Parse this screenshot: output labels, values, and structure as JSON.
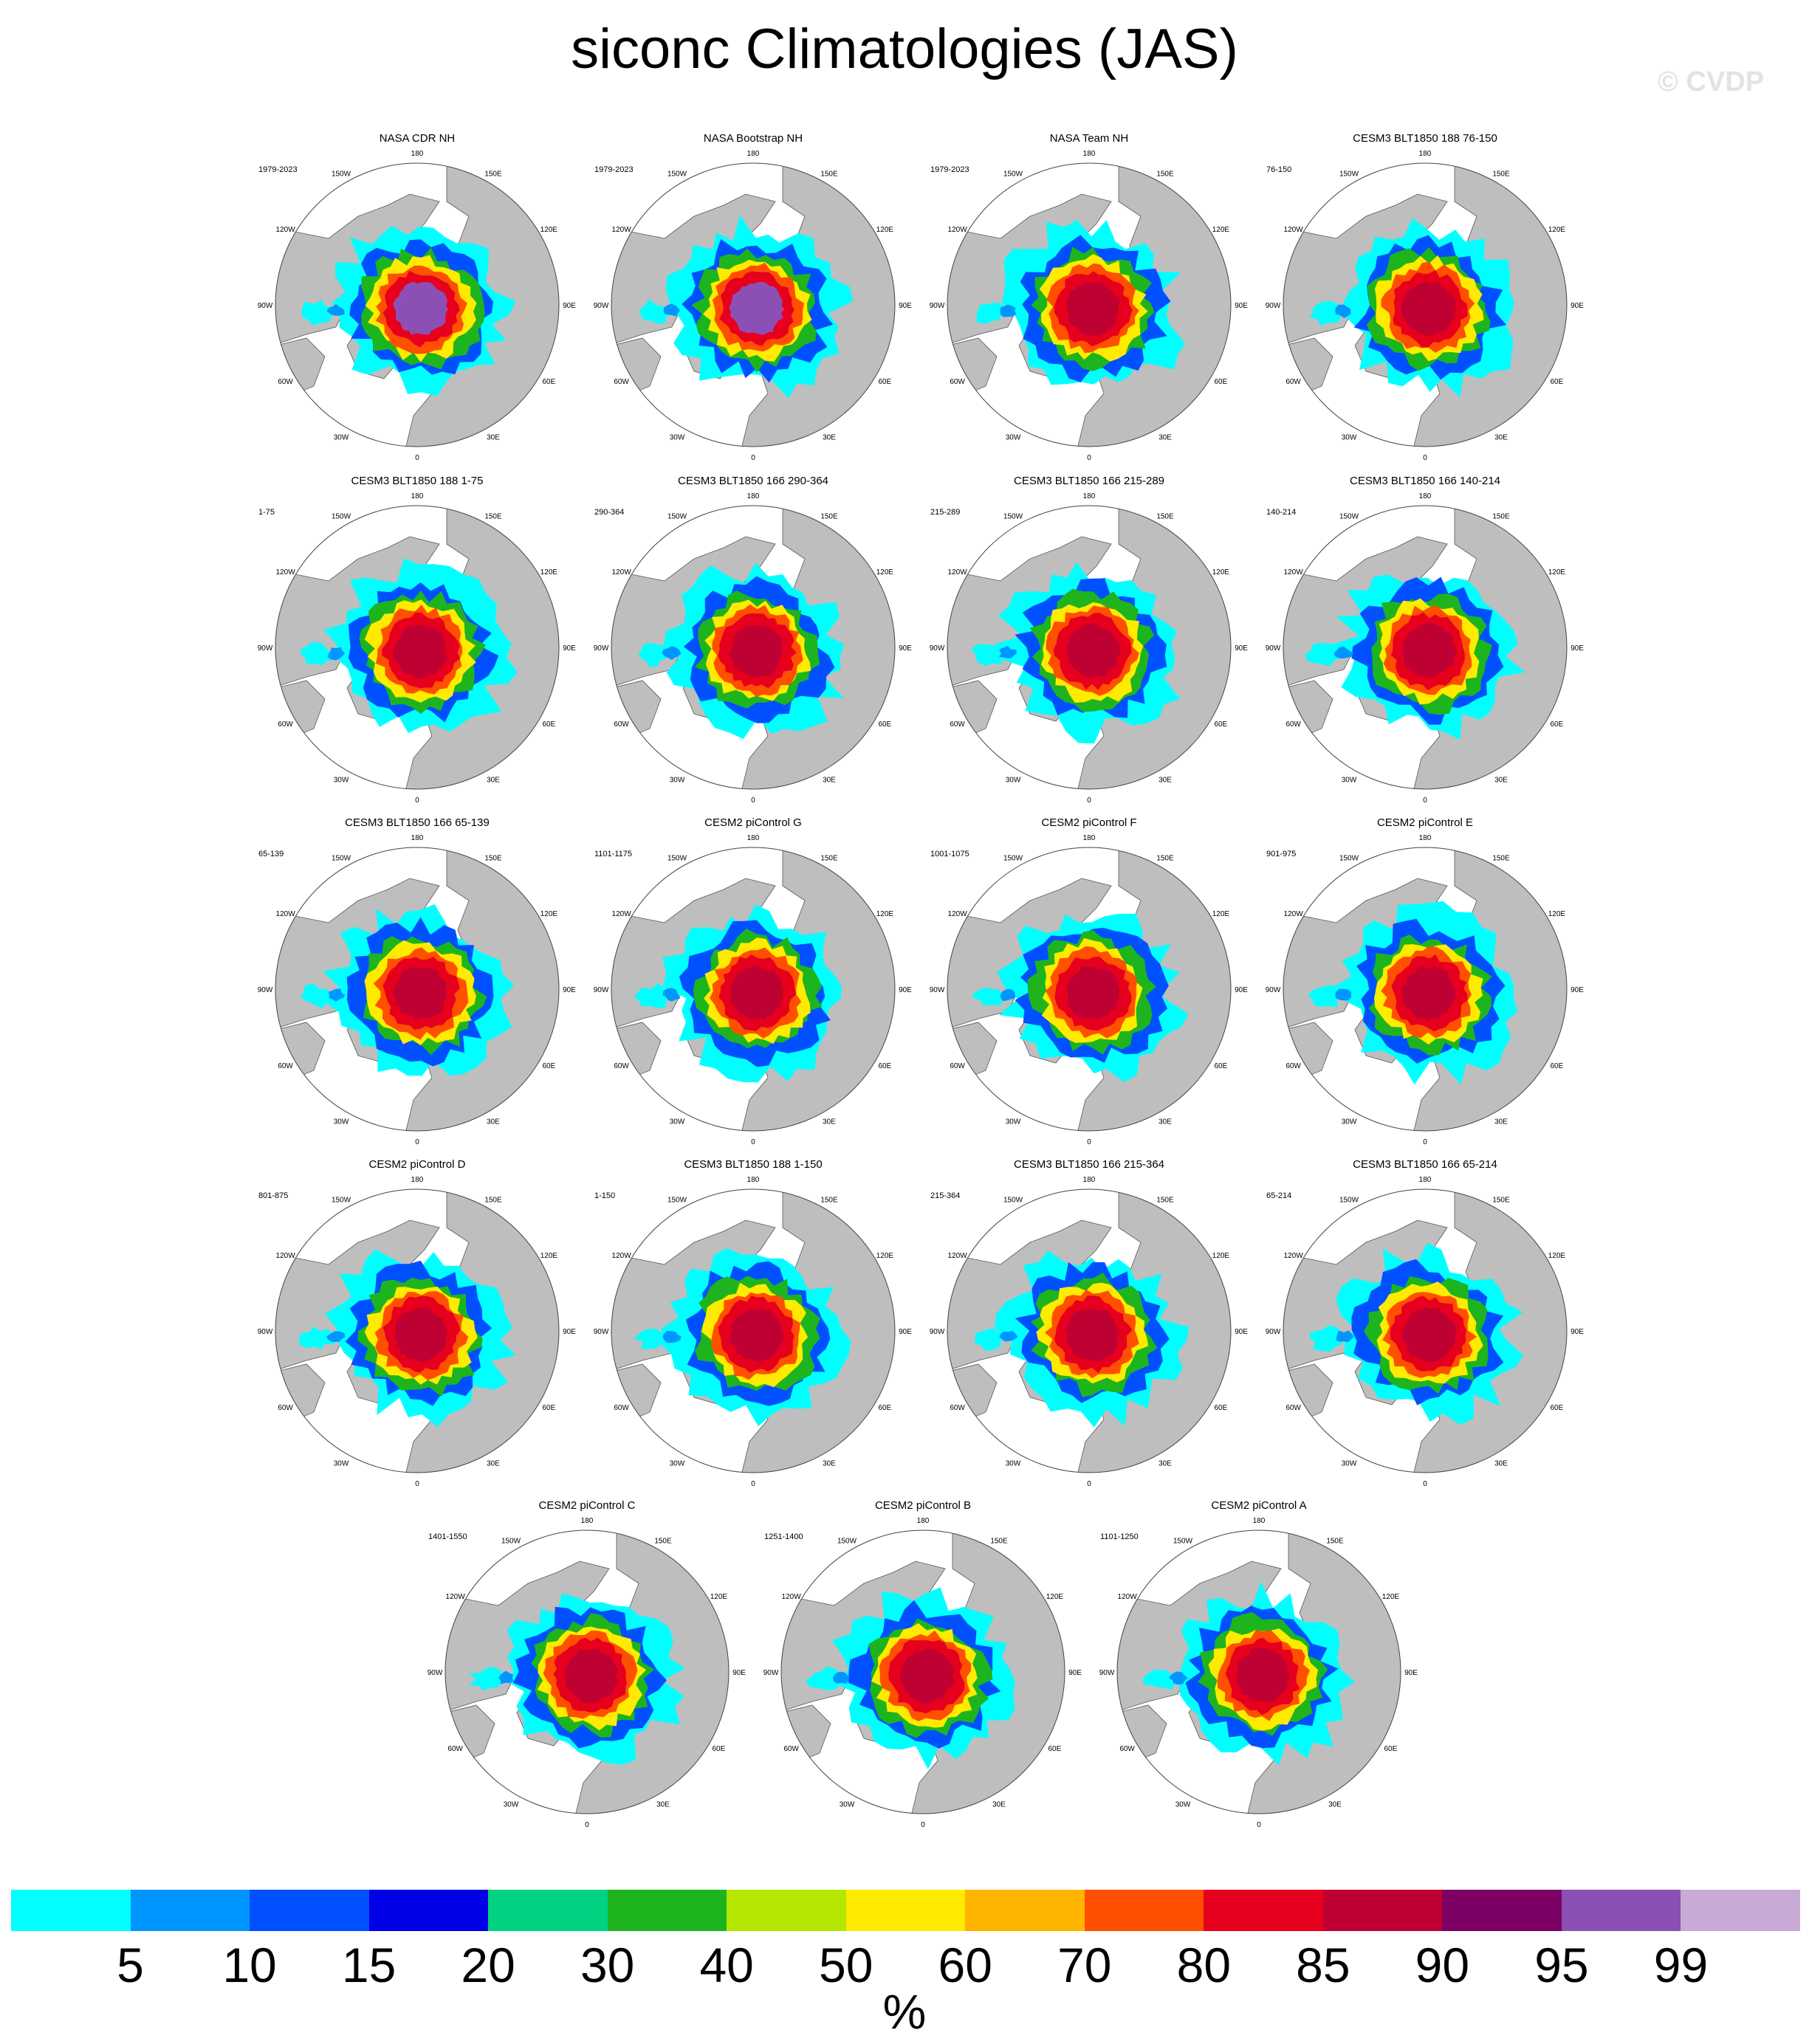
{
  "title": "siconc Climatologies (JAS)",
  "watermark": "© CVDP",
  "chart_data": {
    "type": "heatmap",
    "variable": "siconc",
    "season": "JAS",
    "projection": "north polar stereographic",
    "units": "%",
    "longitude_labels": [
      "180",
      "150E",
      "120E",
      "90E",
      "60E",
      "30E",
      "0",
      "30W",
      "60W",
      "90W",
      "120W",
      "150W"
    ],
    "colorbar": {
      "levels": [
        "5",
        "10",
        "15",
        "20",
        "30",
        "40",
        "50",
        "60",
        "70",
        "80",
        "85",
        "90",
        "95",
        "99"
      ],
      "colors": [
        "#00ffff",
        "#0096ff",
        "#0050ff",
        "#0000e6",
        "#00d282",
        "#1eb41e",
        "#b4e600",
        "#ffeb00",
        "#ffb400",
        "#ff5000",
        "#e6001e",
        "#be0032",
        "#7d0064",
        "#8c50b4",
        "#c8aad7"
      ]
    },
    "land_color": "#bebebe",
    "ocean_color": "#ffffff",
    "panels": [
      {
        "title": "NASA CDR NH",
        "period": "1979-2023"
      },
      {
        "title": "NASA Bootstrap NH",
        "period": "1979-2023"
      },
      {
        "title": "NASA Team NH",
        "period": "1979-2023"
      },
      {
        "title": "CESM3 BLT1850 188 76-150",
        "period": "76-150"
      },
      {
        "title": "CESM3 BLT1850 188 1-75",
        "period": "1-75"
      },
      {
        "title": "CESM3 BLT1850 166 290-364",
        "period": "290-364"
      },
      {
        "title": "CESM3 BLT1850 166 215-289",
        "period": "215-289"
      },
      {
        "title": "CESM3 BLT1850 166 140-214",
        "period": "140-214"
      },
      {
        "title": "CESM3 BLT1850 166 65-139",
        "period": "65-139"
      },
      {
        "title": "CESM2 piControl G",
        "period": "1101-1175"
      },
      {
        "title": "CESM2 piControl F",
        "period": "1001-1075"
      },
      {
        "title": "CESM2 piControl E",
        "period": "901-975"
      },
      {
        "title": "CESM2 piControl D",
        "period": "801-875"
      },
      {
        "title": "CESM3 BLT1850 188 1-150",
        "period": "1-150"
      },
      {
        "title": "CESM3 BLT1850 166 215-364",
        "period": "215-364"
      },
      {
        "title": "CESM3 BLT1850 166 65-214",
        "period": "65-214"
      },
      {
        "title": "CESM2 piControl C",
        "period": "1401-1550"
      },
      {
        "title": "CESM2 piControl B",
        "period": "1251-1400"
      },
      {
        "title": "CESM2 piControl A",
        "period": "1101-1250"
      }
    ]
  }
}
